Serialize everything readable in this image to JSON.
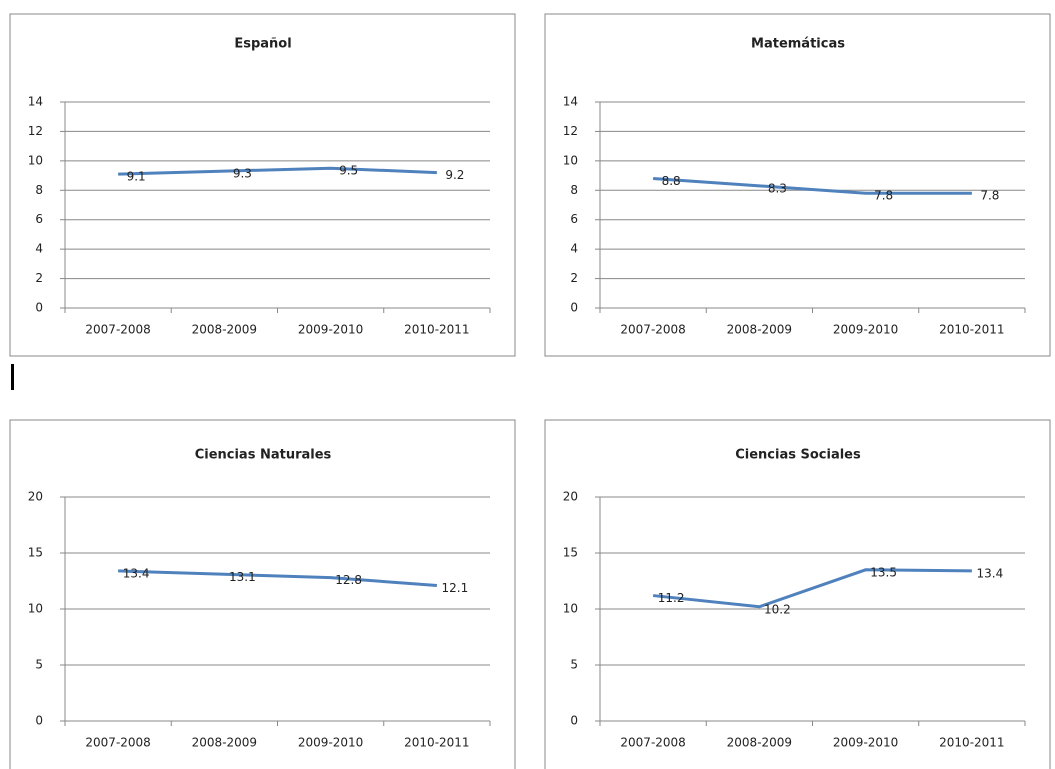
{
  "chart_data": [
    {
      "type": "line",
      "title": "Español",
      "categories": [
        "2007-2008",
        "2008-2009",
        "2009-2010",
        "2010-2011"
      ],
      "series": [
        {
          "color": "#4f81bd",
          "values": [
            9.1,
            9.3,
            9.5,
            9.2
          ]
        }
      ],
      "ylim": [
        0,
        14
      ],
      "yticks": [
        0,
        2,
        4,
        6,
        8,
        10,
        12,
        14
      ],
      "grid": true
    },
    {
      "type": "line",
      "title": "Matemáticas",
      "categories": [
        "2007-2008",
        "2008-2009",
        "2009-2010",
        "2010-2011"
      ],
      "series": [
        {
          "color": "#4f81bd",
          "values": [
            8.8,
            8.3,
            7.8,
            7.8
          ]
        }
      ],
      "ylim": [
        0,
        14
      ],
      "yticks": [
        0,
        2,
        4,
        6,
        8,
        10,
        12,
        14
      ],
      "grid": true
    },
    {
      "type": "line",
      "title": "Ciencias Naturales",
      "categories": [
        "2007-2008",
        "2008-2009",
        "2009-2010",
        "2010-2011"
      ],
      "series": [
        {
          "color": "#4f81bd",
          "values": [
            13.4,
            13.1,
            12.8,
            12.1
          ]
        }
      ],
      "ylim": [
        0,
        20
      ],
      "yticks": [
        0,
        5,
        10,
        15,
        20
      ],
      "grid": true
    },
    {
      "type": "line",
      "title": "Ciencias Sociales",
      "categories": [
        "2007-2008",
        "2008-2009",
        "2009-2010",
        "2010-2011"
      ],
      "series": [
        {
          "color": "#4f81bd",
          "values": [
            11.2,
            10.2,
            13.5,
            13.4
          ]
        }
      ],
      "ylim": [
        0,
        20
      ],
      "yticks": [
        0,
        5,
        10,
        15,
        20
      ],
      "grid": true
    }
  ]
}
